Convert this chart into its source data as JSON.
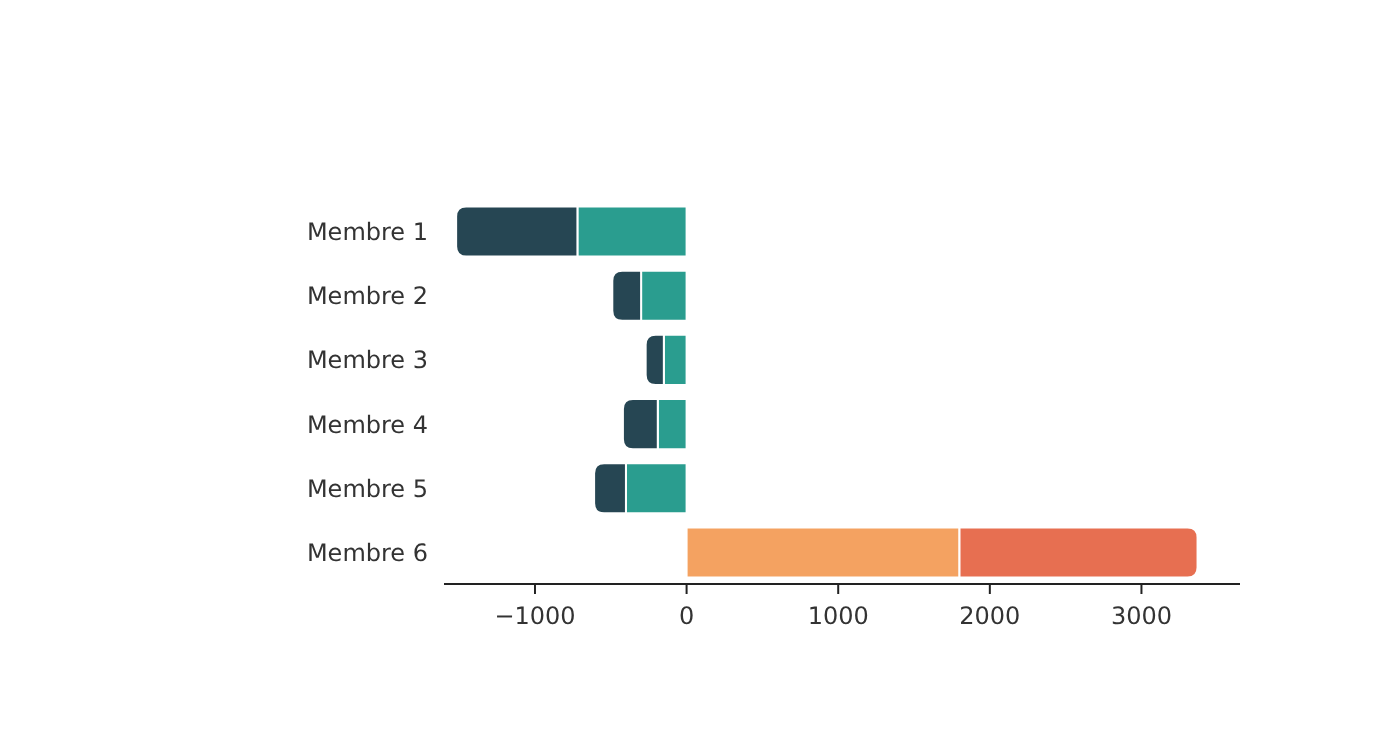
{
  "chart_data": {
    "type": "bar",
    "orientation": "horizontal",
    "stacked": true,
    "categories": [
      "Membre 1",
      "Membre 2",
      "Membre 3",
      "Membre 4",
      "Membre 5",
      "Membre 6"
    ],
    "series": [
      {
        "colors": [
          "#2a9d8f",
          "#2a9d8f",
          "#2a9d8f",
          "#2a9d8f",
          "#2a9d8f",
          "#f4a261"
        ],
        "values": [
          -720,
          -300,
          -150,
          -190,
          -400,
          1800
        ]
      },
      {
        "colors": [
          "#264653",
          "#264653",
          "#264653",
          "#264653",
          "#264653",
          "#e76f51"
        ],
        "values": [
          -800,
          -190,
          -120,
          -230,
          -210,
          1570
        ]
      }
    ],
    "xlim": [
      -1600,
      3650
    ],
    "xticks": [
      {
        "value": -1000,
        "label": "−1000"
      },
      0,
      1000,
      2000,
      3000
    ],
    "grid": false
  }
}
